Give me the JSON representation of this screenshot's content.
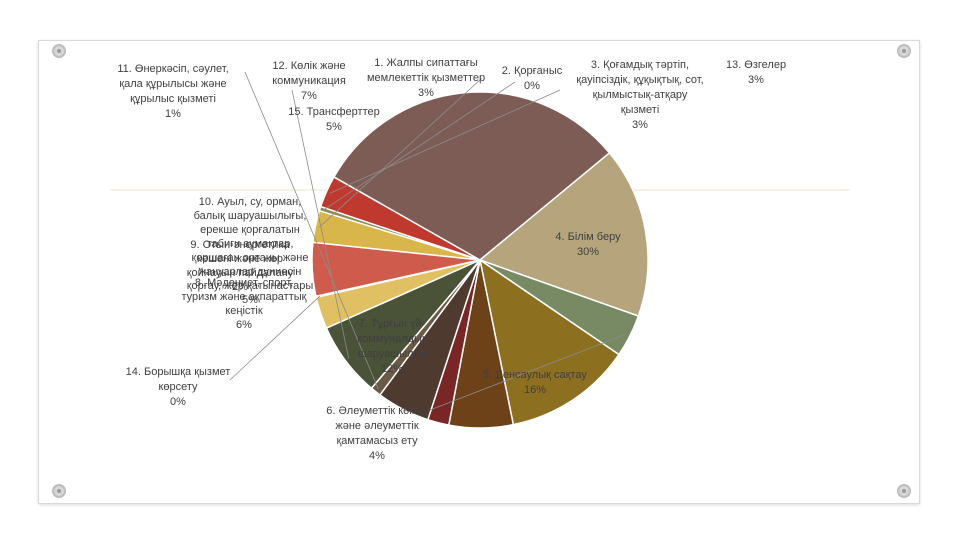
{
  "colors": {
    "divider": "#e8e6c8",
    "leader": "#8c8c8c"
  },
  "chart_data": {
    "type": "pie",
    "slices": [
      {
        "label": "1. Жалпы сипаттағы мемлекеттік қызметтер",
        "pct_label": "3%",
        "value": 3,
        "color": "#d9b64a"
      },
      {
        "label": "2. Қорғаныс",
        "pct_label": "0%",
        "value": 0.4,
        "color": "#8a8a57"
      },
      {
        "label": "3. Қоғамдық тәртіп, қауіпсіздік, құқықтық, сот, қылмыстық-атқару қызметі",
        "pct_label": "3%",
        "value": 3,
        "color": "#c0392f"
      },
      {
        "label": "4. Білім беру",
        "pct_label": "30%",
        "value": 30,
        "color": "#7d5c55"
      },
      {
        "label": "5. Денсаулық сақтау",
        "pct_label": "16%",
        "value": 16,
        "color": "#b5a47c"
      },
      {
        "label": "6. Әлеуметтік көмек және әлеуметтік қамтамасыз ету",
        "pct_label": "4%",
        "value": 4,
        "color": "#788a64"
      },
      {
        "label": "7. Тұрғын үй-коммуналдық шаруашылық",
        "pct_label": "12%",
        "value": 12,
        "color": "#8c6f1f"
      },
      {
        "label": "8. Мәдениет, спорт, туризм және ақпараттық кеңістік",
        "pct_label": "6%",
        "value": 6,
        "color": "#6e4218"
      },
      {
        "label": "9. Отын-энергетика кешені және жер қойнауын пайдалану",
        "pct_label": "",
        "value": 2,
        "color": "#7b2626"
      },
      {
        "label": "10. Ауыл, су, орман, балық шаруашылығы, ерекше қорғалатын табиғи аумақтар, қоршаған ортаны және жануарлар дүниесін қорғау, жер қатынастары",
        "pct_label": "",
        "value": 5,
        "color": "#4f3a30"
      },
      {
        "label": "11. Өнеркәсіп, сәулет, қала құрылысы және құрылыс қызметі",
        "pct_label": "1%",
        "value": 1,
        "color": "#6b5a44"
      },
      {
        "label": "12. Көлік және коммуникация",
        "pct_label": "7%",
        "value": 7,
        "color": "#4a5237"
      },
      {
        "label": "13. Өзгелер",
        "pct_label": "3%",
        "value": 3,
        "color": "#e0c063"
      },
      {
        "label": "14. Борышқа қызмет көрсету",
        "pct_label": "0%",
        "value": 0.1,
        "color": "#9a9a9a"
      },
      {
        "label": "15. Трансферттер",
        "pct_label": "5%",
        "value": 5,
        "color": "#cf5b4d"
      }
    ]
  },
  "labels": [
    {
      "lines": [
        "1. Жалпы сипаттағы",
        "мемлекеттік қызметтер",
        "3%"
      ]
    },
    {
      "lines": [
        "2. Қорғаныс",
        "0%"
      ]
    },
    {
      "lines": [
        "3. Қоғамдық тәртіп,",
        "қауіпсіздік, құқықтық, сот,",
        "қылмыстық-атқару",
        "қызметі",
        "3%"
      ]
    },
    {
      "lines": [
        "4. Білім беру",
        "30%"
      ]
    },
    {
      "lines": [
        "5. Денсаулық сақтау",
        "16%"
      ]
    },
    {
      "lines": [
        "6. Әлеуметтік көмек",
        "және әлеуметтік",
        "қамтамасыз ету",
        "4%"
      ]
    },
    {
      "lines": [
        "7. Тұрғын үй-",
        "коммуналдық",
        "шаруашылық",
        "12%"
      ]
    },
    {
      "lines": [
        "8. Мәдениет, спорт,",
        "туризм және ақпараттық",
        "кеңістік",
        "6%"
      ]
    },
    {
      "lines": [
        "9. Отын-энергетика",
        "кешені және жер",
        "қойнауын пайдалану",
        "2%"
      ]
    },
    {
      "lines": [
        "10. Ауыл, су, орман,",
        "балық шаруашылығы,",
        "ерекше қорғалатын",
        "табиғи аумақтар,",
        "қоршаған ортаны және",
        "жануарлар дүниесін",
        "қорғау, жер қатынастары",
        "5%"
      ]
    },
    {
      "lines": [
        "11. Өнеркәсіп, сәулет,",
        "қала құрылысы және",
        "құрылыс қызметі",
        "1%"
      ]
    },
    {
      "lines": [
        "12. Көлік және",
        "коммуникация",
        "7%"
      ]
    },
    {
      "lines": [
        "13. Өзгелер",
        "3%"
      ]
    },
    {
      "lines": [
        "14. Борышқа қызмет",
        "көрсету",
        "0%"
      ]
    },
    {
      "lines": [
        "15. Трансферттер",
        "5%"
      ]
    }
  ]
}
